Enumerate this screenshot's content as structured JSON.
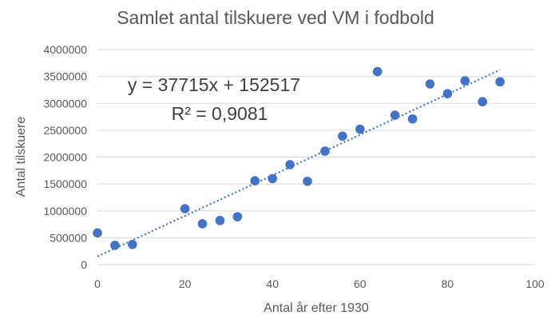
{
  "chart_data": {
    "type": "scatter",
    "title": "Samlet antal tilskuere ved VM i fodbold",
    "xlabel": "Antal år efter 1930",
    "ylabel": "Antal tilskuere",
    "xlim": [
      0,
      100
    ],
    "ylim": [
      0,
      4000000
    ],
    "xticks": [
      "0",
      "20",
      "40",
      "60",
      "80",
      "100"
    ],
    "yticks": [
      "0",
      "500000",
      "1000000",
      "1500000",
      "2000000",
      "2500000",
      "3000000",
      "3500000",
      "4000000"
    ],
    "grid": "horizontal",
    "legend": "none",
    "series": [
      {
        "color": "#4472c4",
        "points": [
          {
            "x": 0,
            "y": 590000
          },
          {
            "x": 4,
            "y": 360000
          },
          {
            "x": 8,
            "y": 375000
          },
          {
            "x": 20,
            "y": 1040000
          },
          {
            "x": 24,
            "y": 760000
          },
          {
            "x": 28,
            "y": 820000
          },
          {
            "x": 32,
            "y": 890000
          },
          {
            "x": 36,
            "y": 1560000
          },
          {
            "x": 40,
            "y": 1600000
          },
          {
            "x": 44,
            "y": 1860000
          },
          {
            "x": 48,
            "y": 1550000
          },
          {
            "x": 52,
            "y": 2110000
          },
          {
            "x": 56,
            "y": 2390000
          },
          {
            "x": 60,
            "y": 2520000
          },
          {
            "x": 64,
            "y": 3590000
          },
          {
            "x": 68,
            "y": 2780000
          },
          {
            "x": 72,
            "y": 2710000
          },
          {
            "x": 76,
            "y": 3360000
          },
          {
            "x": 80,
            "y": 3180000
          },
          {
            "x": 84,
            "y": 3420000
          },
          {
            "x": 88,
            "y": 3030000
          },
          {
            "x": 92,
            "y": 3400000
          }
        ]
      }
    ],
    "trendline": {
      "type": "linear",
      "slope": 37715,
      "intercept": 152517,
      "x_range": [
        0,
        92
      ],
      "equation_text": "y = 37715x + 152517",
      "r2_text": "R² = 0,9081",
      "style": "dotted"
    }
  }
}
